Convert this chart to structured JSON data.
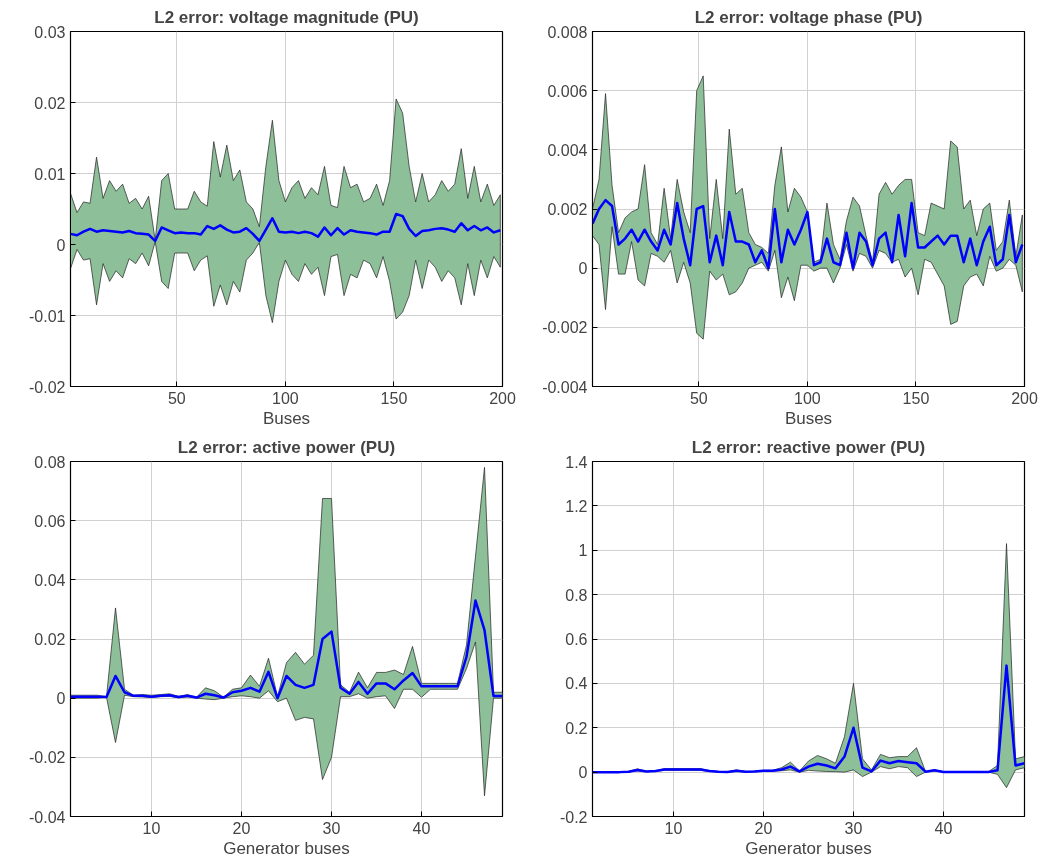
{
  "chart_data": [
    {
      "type": "line",
      "title": "L2 error: voltage magnitude (PU)",
      "xlabel": "Buses",
      "xlim": [
        1,
        200
      ],
      "ylim": [
        -0.02,
        0.03
      ],
      "xticks": [
        50,
        100,
        150,
        200
      ],
      "yticks": [
        -0.02,
        -0.01,
        0,
        0.01,
        0.02,
        0.03
      ],
      "grid": true,
      "x": [
        1,
        4,
        7,
        10,
        13,
        16,
        19,
        22,
        25,
        28,
        31,
        34,
        37,
        40,
        43,
        46,
        49,
        52,
        55,
        58,
        61,
        64,
        67,
        70,
        73,
        76,
        79,
        82,
        85,
        88,
        91,
        94,
        97,
        100,
        103,
        106,
        109,
        112,
        115,
        118,
        121,
        124,
        127,
        130,
        133,
        136,
        139,
        142,
        145,
        148,
        151,
        154,
        157,
        160,
        163,
        166,
        169,
        172,
        175,
        178,
        181,
        184,
        187,
        190,
        193,
        196,
        199
      ],
      "series": [
        {
          "color": "#0000ff",
          "values": [
            0.0015,
            0.0013,
            0.0018,
            0.0022,
            0.0018,
            0.002,
            0.0019,
            0.0018,
            0.0017,
            0.0019,
            0.0016,
            0.0015,
            0.0014,
            0.0005,
            0.0024,
            0.002,
            0.0016,
            0.0017,
            0.0016,
            0.0016,
            0.0014,
            0.0026,
            0.0022,
            0.0027,
            0.0021,
            0.0017,
            0.0018,
            0.0023,
            0.0015,
            0.0005,
            0.0021,
            0.0037,
            0.0018,
            0.0017,
            0.0018,
            0.0016,
            0.0018,
            0.0016,
            0.0011,
            0.0024,
            0.0013,
            0.0023,
            0.0014,
            0.002,
            0.0018,
            0.0017,
            0.0016,
            0.0014,
            0.0018,
            0.0018,
            0.0043,
            0.004,
            0.0022,
            0.0012,
            0.0019,
            0.002,
            0.0022,
            0.0023,
            0.0021,
            0.0018,
            0.003,
            0.002,
            0.0026,
            0.002,
            0.0024,
            0.0017,
            0.002
          ],
          "upper": [
            0.0072,
            0.0045,
            0.006,
            0.0058,
            0.0123,
            0.0065,
            0.009,
            0.0075,
            0.0085,
            0.0058,
            0.0065,
            0.005,
            0.0068,
            0.0006,
            0.009,
            0.01,
            0.005,
            0.005,
            0.005,
            0.0075,
            0.006,
            0.0054,
            0.0145,
            0.0095,
            0.014,
            0.009,
            0.0105,
            0.006,
            0.005,
            0.0025,
            0.011,
            0.0175,
            0.009,
            0.006,
            0.008,
            0.009,
            0.0065,
            0.008,
            0.007,
            0.011,
            0.0055,
            0.0052,
            0.011,
            0.008,
            0.0085,
            0.006,
            0.0065,
            0.0085,
            0.0055,
            0.009,
            0.0205,
            0.0185,
            0.011,
            0.006,
            0.01,
            0.006,
            0.007,
            0.009,
            0.0075,
            0.0085,
            0.0135,
            0.0065,
            0.011,
            0.006,
            0.0085,
            0.0055,
            0.007
          ],
          "lower": [
            -0.0034,
            -0.0007,
            -0.0022,
            -0.002,
            -0.0085,
            -0.0027,
            -0.0052,
            -0.0037,
            -0.0047,
            -0.002,
            -0.0027,
            -0.0012,
            -0.003,
            0.0004,
            -0.0052,
            -0.0062,
            -0.0012,
            -0.0012,
            -0.0012,
            -0.0037,
            -0.0022,
            -0.0016,
            -0.0087,
            -0.0057,
            -0.0085,
            -0.0052,
            -0.0067,
            -0.0022,
            -0.0012,
            0.0003,
            -0.0072,
            -0.011,
            -0.0052,
            -0.0022,
            -0.0042,
            -0.0052,
            -0.0027,
            -0.0042,
            -0.0032,
            -0.0072,
            -0.0017,
            -0.0014,
            -0.0072,
            -0.0042,
            -0.0047,
            -0.0022,
            -0.0027,
            -0.0047,
            -0.0017,
            -0.0052,
            -0.0105,
            -0.0095,
            -0.0072,
            -0.0022,
            -0.0062,
            -0.0022,
            -0.0032,
            -0.0052,
            -0.0037,
            -0.0047,
            -0.0085,
            -0.0027,
            -0.0072,
            -0.0022,
            -0.0047,
            -0.0017,
            -0.0032
          ]
        }
      ]
    },
    {
      "type": "line",
      "title": "L2 error: voltage phase (PU)",
      "xlabel": "Buses",
      "xlim": [
        1,
        200
      ],
      "ylim": [
        -0.004,
        0.008
      ],
      "xticks": [
        50,
        100,
        150,
        200
      ],
      "yticks": [
        -0.004,
        -0.002,
        0,
        0.002,
        0.004,
        0.006,
        0.008
      ],
      "grid": true,
      "x": [
        1,
        4,
        7,
        10,
        13,
        16,
        19,
        22,
        25,
        28,
        31,
        34,
        37,
        40,
        43,
        46,
        49,
        52,
        55,
        58,
        61,
        64,
        67,
        70,
        73,
        76,
        79,
        82,
        85,
        88,
        91,
        94,
        97,
        100,
        103,
        106,
        109,
        112,
        115,
        118,
        121,
        124,
        127,
        130,
        133,
        136,
        139,
        142,
        145,
        148,
        151,
        154,
        157,
        160,
        163,
        166,
        169,
        172,
        175,
        178,
        181,
        184,
        187,
        190,
        193,
        196,
        199
      ],
      "series": [
        {
          "color": "#0000ff",
          "values": [
            0.0015,
            0.002,
            0.0023,
            0.0021,
            0.0008,
            0.001,
            0.0013,
            0.0009,
            0.0013,
            0.0009,
            0.0006,
            0.0013,
            0.0008,
            0.0022,
            0.001,
            0.0001,
            0.002,
            0.0021,
            0.0002,
            0.0011,
            0.0001,
            0.0019,
            0.0009,
            0.0009,
            0.0008,
            0.0002,
            0.0006,
            0.0,
            0.002,
            0.0002,
            0.0013,
            0.0008,
            0.0013,
            0.0019,
            0.0001,
            0.0002,
            0.001,
            0.0002,
            0.0001,
            0.0012,
            0.0,
            0.0012,
            0.0009,
            0.0001,
            0.001,
            0.0012,
            0.0002,
            0.0018,
            0.0004,
            0.0022,
            0.0007,
            0.0007,
            0.0009,
            0.0011,
            0.0008,
            0.0011,
            0.0011,
            0.0002,
            0.001,
            0.0001,
            0.0009,
            0.0014,
            0.0001,
            0.0003,
            0.0018,
            0.0002,
            0.0008
          ],
          "upper": [
            0.002,
            0.003,
            0.0059,
            0.0028,
            0.0012,
            0.0017,
            0.0019,
            0.002,
            0.0035,
            0.0012,
            0.0008,
            0.0027,
            0.001,
            0.003,
            0.0019,
            0.0012,
            0.006,
            0.0065,
            0.001,
            0.003,
            0.001,
            0.0047,
            0.0025,
            0.0027,
            0.0012,
            0.0008,
            0.0007,
            0.0005,
            0.0028,
            0.0041,
            0.0019,
            0.0027,
            0.0024,
            0.0019,
            0.0002,
            0.0003,
            0.0022,
            0.0008,
            0.0003,
            0.0016,
            0.0024,
            0.0021,
            0.0011,
            0.0002,
            0.0025,
            0.0029,
            0.0025,
            0.0028,
            0.003,
            0.003,
            0.0012,
            0.0011,
            0.0022,
            0.0021,
            0.002,
            0.0043,
            0.0041,
            0.002,
            0.0023,
            0.0011,
            0.002,
            0.0022,
            0.0006,
            0.0009,
            0.0023,
            0.0004,
            0.0018
          ],
          "lower": [
            0.0011,
            0.0008,
            -0.0014,
            0.0014,
            -0.0002,
            -0.0002,
            0.0009,
            -0.0004,
            -0.0006,
            0.0005,
            0.0004,
            0.0002,
            0.0006,
            -0.0005,
            0.0002,
            -0.0005,
            -0.0022,
            -0.0024,
            -0.0001,
            -0.0004,
            -0.0002,
            -0.0009,
            -0.0008,
            -0.0005,
            0.0,
            0.0001,
            0.0002,
            -0.0001,
            0.0006,
            -0.001,
            -0.0003,
            -0.0011,
            0.0001,
            0.0001,
            -0.0001,
            0.0,
            0.0,
            -0.0005,
            0.0,
            0.0008,
            -0.0001,
            0.0005,
            0.0004,
            0.0,
            0.0006,
            0.0005,
            0.0002,
            0.0003,
            -0.0003,
            0.0,
            -0.0009,
            0.0003,
            0.0002,
            -0.0002,
            -0.0006,
            -0.0019,
            -0.0018,
            -0.0006,
            -0.0003,
            -0.0002,
            -0.0006,
            0.0004,
            -0.0001,
            0.0,
            0.0003,
            0.0001,
            -0.0008
          ]
        }
      ]
    },
    {
      "type": "line",
      "title": "L2 error: active power (PU)",
      "xlabel": "Generator buses",
      "xlim": [
        1,
        49
      ],
      "ylim": [
        -0.04,
        0.08
      ],
      "xticks": [
        10,
        20,
        30,
        40
      ],
      "yticks": [
        -0.04,
        -0.02,
        0,
        0.02,
        0.04,
        0.06,
        0.08
      ],
      "grid": true,
      "x": [
        1,
        2,
        3,
        4,
        5,
        6,
        7,
        8,
        9,
        10,
        11,
        12,
        13,
        14,
        15,
        16,
        17,
        18,
        19,
        20,
        21,
        22,
        23,
        24,
        25,
        26,
        27,
        28,
        29,
        30,
        31,
        32,
        33,
        34,
        35,
        36,
        37,
        38,
        39,
        40,
        41,
        42,
        43,
        44,
        45,
        46,
        47,
        48,
        49
      ],
      "series": [
        {
          "color": "#0000ff",
          "values": [
            0.0005,
            0.0005,
            0.0005,
            0.0005,
            0.0004,
            0.0075,
            0.002,
            0.0008,
            0.0008,
            0.0005,
            0.0008,
            0.001,
            0.0004,
            0.0008,
            0.0002,
            0.0015,
            0.001,
            0.0002,
            0.002,
            0.0025,
            0.0035,
            0.0022,
            0.0089,
            0.0,
            0.0075,
            0.0045,
            0.0035,
            0.0045,
            0.02,
            0.0225,
            0.0035,
            0.0015,
            0.0055,
            0.0015,
            0.005,
            0.005,
            0.003,
            0.006,
            0.0085,
            0.004,
            0.004,
            0.004,
            0.004,
            0.004,
            0.014,
            0.033,
            0.023,
            0.0007,
            0.0007
          ],
          "upper": [
            0.001,
            0.001,
            0.001,
            0.001,
            0.0005,
            0.0305,
            0.003,
            0.001,
            0.0012,
            0.001,
            0.0012,
            0.0015,
            0.0006,
            0.0012,
            0.0003,
            0.0035,
            0.0025,
            0.0003,
            0.003,
            0.0035,
            0.0078,
            0.004,
            0.0135,
            0.0005,
            0.012,
            0.0155,
            0.0115,
            0.0145,
            0.0675,
            0.0675,
            0.0045,
            0.002,
            0.0088,
            0.0035,
            0.0087,
            0.0087,
            0.0095,
            0.008,
            0.0175,
            0.005,
            0.005,
            0.005,
            0.005,
            0.005,
            0.018,
            0.048,
            0.078,
            0.002,
            0.002
          ],
          "lower": [
            0.0,
            0.0,
            0.0,
            0.0,
            0.0003,
            -0.015,
            0.001,
            0.0005,
            0.0004,
            0.0002,
            0.0005,
            0.0006,
            0.0001,
            0.0004,
            0.0,
            -0.0003,
            -0.0005,
            0.0,
            0.0005,
            0.0008,
            0.0005,
            0.0,
            0.0025,
            -0.0012,
            0.0,
            -0.0075,
            -0.0065,
            -0.007,
            -0.0275,
            -0.02,
            0.0005,
            0.0005,
            0.0015,
            0.0,
            0.0005,
            0.0008,
            -0.0035,
            0.003,
            0.003,
            0.0003,
            0.003,
            0.003,
            0.003,
            0.003,
            0.01,
            0.019,
            -0.033,
            0.0,
            0.0
          ]
        }
      ]
    },
    {
      "type": "line",
      "title": "L2 error: reactive power (PU)",
      "xlabel": "Generator buses",
      "xlim": [
        1,
        49
      ],
      "ylim": [
        -0.2,
        1.4
      ],
      "xticks": [
        10,
        20,
        30,
        40
      ],
      "yticks": [
        -0.2,
        0,
        0.2,
        0.4,
        0.6,
        0.8,
        1,
        1.2,
        1.4
      ],
      "grid": true,
      "x": [
        1,
        2,
        3,
        4,
        5,
        6,
        7,
        8,
        9,
        10,
        11,
        12,
        13,
        14,
        15,
        16,
        17,
        18,
        19,
        20,
        21,
        22,
        23,
        24,
        25,
        26,
        27,
        28,
        29,
        30,
        31,
        32,
        33,
        34,
        35,
        36,
        37,
        38,
        39,
        40,
        41,
        42,
        43,
        44,
        45,
        46,
        47,
        48,
        49
      ],
      "series": [
        {
          "color": "#0000ff",
          "values": [
            0,
            0,
            0,
            0,
            0.002,
            0.01,
            0.003,
            0.005,
            0.012,
            0.012,
            0.012,
            0.012,
            0.012,
            0.005,
            0.002,
            0.001,
            0.006,
            0.002,
            0.003,
            0.006,
            0.006,
            0.012,
            0.025,
            0.003,
            0.025,
            0.038,
            0.03,
            0.017,
            0.07,
            0.2,
            0.02,
            0.003,
            0.052,
            0.04,
            0.05,
            0.045,
            0.04,
            0.002,
            0.008,
            0.001,
            0.001,
            0.001,
            0.001,
            0.001,
            0.001,
            0.008,
            0.48,
            0.03,
            0.04
          ],
          "upper": [
            0,
            0,
            0,
            0,
            0.003,
            0.015,
            0.004,
            0.006,
            0.016,
            0.016,
            0.016,
            0.016,
            0.016,
            0.006,
            0.003,
            0.002,
            0.01,
            0.003,
            0.004,
            0.008,
            0.008,
            0.02,
            0.045,
            0.005,
            0.05,
            0.075,
            0.06,
            0.04,
            0.16,
            0.4,
            0.06,
            0.01,
            0.08,
            0.065,
            0.07,
            0.07,
            0.11,
            0.003,
            0.01,
            0.002,
            0.002,
            0.002,
            0.002,
            0.002,
            0.002,
            0.03,
            1.03,
            0.06,
            0.07
          ],
          "lower": [
            0,
            0,
            0,
            0,
            0.001,
            0.005,
            0.002,
            0.004,
            0.008,
            0.008,
            0.008,
            0.008,
            0.008,
            0.003,
            0.001,
            0,
            0.003,
            0.001,
            0.002,
            0.004,
            0.004,
            0.006,
            0.01,
            0,
            0.008,
            0.005,
            0.003,
            0.002,
            0,
            0.01,
            -0.02,
            0,
            0.025,
            0.015,
            0.025,
            0.02,
            -0.02,
            0,
            0.005,
            0,
            0,
            0,
            0,
            0,
            0,
            -0.01,
            -0.07,
            0.01,
            0.02
          ]
        }
      ]
    }
  ]
}
